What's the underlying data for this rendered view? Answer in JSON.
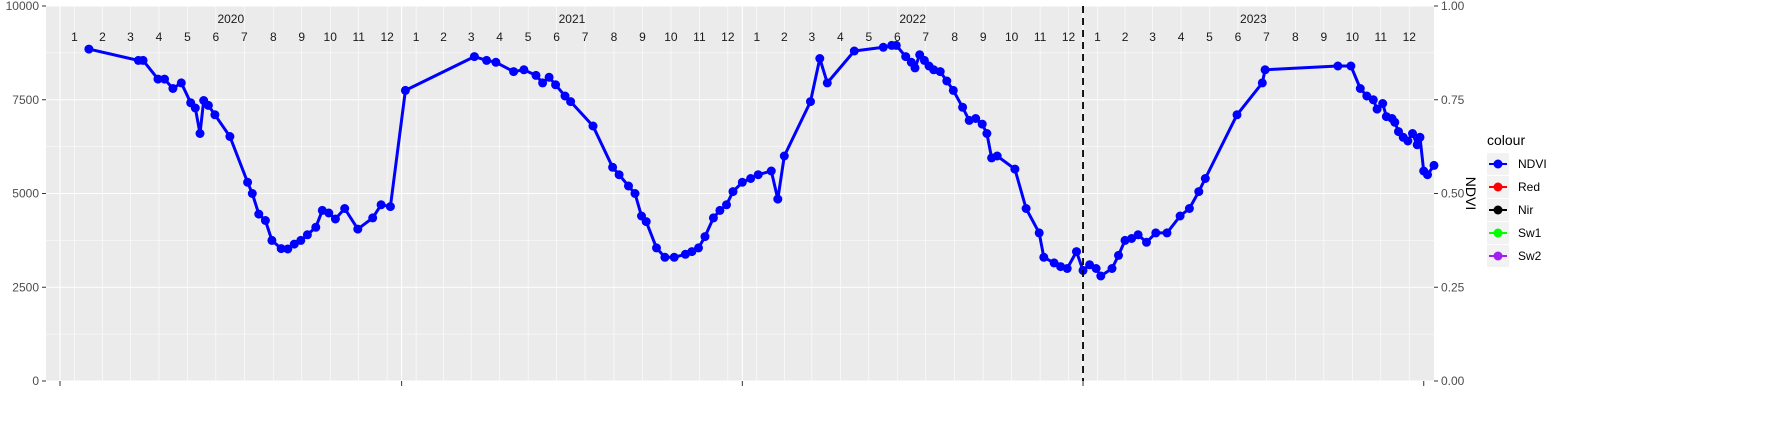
{
  "chart_data": {
    "type": "line",
    "xlim": [
      "2019-12-17",
      "2024-01-12"
    ],
    "ylim_left": [
      0,
      10000
    ],
    "ylim_right": [
      0,
      1
    ],
    "yticks_left": [
      0,
      2500,
      5000,
      7500,
      10000
    ],
    "yticks_right": [
      "0.00",
      "0.25",
      "0.50",
      "0.75",
      "1.00"
    ],
    "ylabel_right": "NDVI",
    "year_labels": [
      "2020",
      "2021",
      "2022",
      "2023"
    ],
    "month_labels": [
      "1",
      "2",
      "3",
      "4",
      "5",
      "6",
      "7",
      "8",
      "9",
      "10",
      "11",
      "12"
    ],
    "vline_date": "2023-01-01",
    "grid": true,
    "legend": {
      "title": "colour",
      "position": "right"
    },
    "series": [
      {
        "name": "NDVI",
        "color": "#0000FF",
        "axis": "right",
        "points": [
          [
            "2020-02-01",
            0.885
          ],
          [
            "2020-03-25",
            0.855
          ],
          [
            "2020-03-30",
            0.855
          ],
          [
            "2020-04-15",
            0.805
          ],
          [
            "2020-04-22",
            0.805
          ],
          [
            "2020-05-01",
            0.78
          ],
          [
            "2020-05-10",
            0.795
          ],
          [
            "2020-05-20",
            0.742
          ],
          [
            "2020-05-25",
            0.728
          ],
          [
            "2020-05-30",
            0.66
          ],
          [
            "2020-06-03",
            0.748
          ],
          [
            "2020-06-08",
            0.735
          ],
          [
            "2020-06-15",
            0.71
          ],
          [
            "2020-07-01",
            0.652
          ],
          [
            "2020-07-20",
            0.53
          ],
          [
            "2020-07-25",
            0.5
          ],
          [
            "2020-08-01",
            0.445
          ],
          [
            "2020-08-08",
            0.428
          ],
          [
            "2020-08-15",
            0.375
          ],
          [
            "2020-08-25",
            0.353
          ],
          [
            "2020-09-01",
            0.352
          ],
          [
            "2020-09-08",
            0.365
          ],
          [
            "2020-09-15",
            0.375
          ],
          [
            "2020-09-22",
            0.39
          ],
          [
            "2020-10-01",
            0.41
          ],
          [
            "2020-10-08",
            0.455
          ],
          [
            "2020-10-15",
            0.448
          ],
          [
            "2020-10-22",
            0.432
          ],
          [
            "2020-11-01",
            0.46
          ],
          [
            "2020-11-15",
            0.405
          ],
          [
            "2020-12-01",
            0.435
          ],
          [
            "2020-12-10",
            0.47
          ],
          [
            "2020-12-20",
            0.465
          ],
          [
            "2021-01-05",
            0.775
          ],
          [
            "2021-03-20",
            0.865
          ],
          [
            "2021-04-02",
            0.855
          ],
          [
            "2021-04-12",
            0.85
          ],
          [
            "2021-05-01",
            0.825
          ],
          [
            "2021-05-12",
            0.83
          ],
          [
            "2021-05-25",
            0.815
          ],
          [
            "2021-06-01",
            0.795
          ],
          [
            "2021-06-08",
            0.81
          ],
          [
            "2021-06-15",
            0.79
          ],
          [
            "2021-06-25",
            0.76
          ],
          [
            "2021-07-01",
            0.745
          ],
          [
            "2021-07-25",
            0.68
          ],
          [
            "2021-08-15",
            0.57
          ],
          [
            "2021-08-22",
            0.55
          ],
          [
            "2021-09-01",
            0.52
          ],
          [
            "2021-09-08",
            0.5
          ],
          [
            "2021-09-15",
            0.44
          ],
          [
            "2021-09-20",
            0.425
          ],
          [
            "2021-10-01",
            0.355
          ],
          [
            "2021-10-10",
            0.33
          ],
          [
            "2021-10-20",
            0.33
          ],
          [
            "2021-11-01",
            0.338
          ],
          [
            "2021-11-08",
            0.345
          ],
          [
            "2021-11-15",
            0.355
          ],
          [
            "2021-11-22",
            0.385
          ],
          [
            "2021-12-01",
            0.435
          ],
          [
            "2021-12-08",
            0.455
          ],
          [
            "2021-12-15",
            0.47
          ],
          [
            "2021-12-22",
            0.505
          ],
          [
            "2022-01-01",
            0.53
          ],
          [
            "2022-01-10",
            0.54
          ],
          [
            "2022-01-18",
            0.55
          ],
          [
            "2022-02-01",
            0.56
          ],
          [
            "2022-02-08",
            0.485
          ],
          [
            "2022-02-15",
            0.6
          ],
          [
            "2022-03-15",
            0.745
          ],
          [
            "2022-03-25",
            0.86
          ],
          [
            "2022-04-02",
            0.795
          ],
          [
            "2022-05-01",
            0.88
          ],
          [
            "2022-06-01",
            0.89
          ],
          [
            "2022-06-10",
            0.895
          ],
          [
            "2022-06-15",
            0.895
          ],
          [
            "2022-06-25",
            0.865
          ],
          [
            "2022-07-01",
            0.85
          ],
          [
            "2022-07-05",
            0.835
          ],
          [
            "2022-07-10",
            0.87
          ],
          [
            "2022-07-15",
            0.855
          ],
          [
            "2022-07-20",
            0.84
          ],
          [
            "2022-07-25",
            0.83
          ],
          [
            "2022-08-01",
            0.825
          ],
          [
            "2022-08-08",
            0.8
          ],
          [
            "2022-08-15",
            0.775
          ],
          [
            "2022-08-25",
            0.73
          ],
          [
            "2022-09-01",
            0.695
          ],
          [
            "2022-09-08",
            0.7
          ],
          [
            "2022-09-15",
            0.685
          ],
          [
            "2022-09-20",
            0.66
          ],
          [
            "2022-09-25",
            0.595
          ],
          [
            "2022-10-01",
            0.6
          ],
          [
            "2022-10-20",
            0.565
          ],
          [
            "2022-11-01",
            0.46
          ],
          [
            "2022-11-15",
            0.395
          ],
          [
            "2022-11-20",
            0.33
          ],
          [
            "2022-12-01",
            0.315
          ],
          [
            "2022-12-08",
            0.305
          ],
          [
            "2022-12-15",
            0.3
          ],
          [
            "2022-12-25",
            0.345
          ],
          [
            "2023-01-01",
            0.295
          ],
          [
            "2023-01-08",
            0.31
          ],
          [
            "2023-01-15",
            0.3
          ],
          [
            "2023-01-20",
            0.28
          ],
          [
            "2023-02-01",
            0.3
          ],
          [
            "2023-02-08",
            0.335
          ],
          [
            "2023-02-15",
            0.375
          ],
          [
            "2023-02-22",
            0.38
          ],
          [
            "2023-03-01",
            0.39
          ],
          [
            "2023-03-10",
            0.37
          ],
          [
            "2023-03-20",
            0.395
          ],
          [
            "2023-04-01",
            0.395
          ],
          [
            "2023-04-15",
            0.44
          ],
          [
            "2023-04-25",
            0.46
          ],
          [
            "2023-05-05",
            0.505
          ],
          [
            "2023-05-12",
            0.54
          ],
          [
            "2023-06-15",
            0.71
          ],
          [
            "2023-07-12",
            0.795
          ],
          [
            "2023-07-15",
            0.83
          ],
          [
            "2023-10-01",
            0.84
          ],
          [
            "2023-10-15",
            0.84
          ],
          [
            "2023-10-25",
            0.78
          ],
          [
            "2023-11-01",
            0.76
          ],
          [
            "2023-11-08",
            0.75
          ],
          [
            "2023-11-12",
            0.725
          ],
          [
            "2023-11-18",
            0.74
          ],
          [
            "2023-11-22",
            0.705
          ],
          [
            "2023-11-28",
            0.7
          ],
          [
            "2023-12-01",
            0.69
          ],
          [
            "2023-12-05",
            0.665
          ],
          [
            "2023-12-10",
            0.65
          ],
          [
            "2023-12-15",
            0.64
          ],
          [
            "2023-12-20",
            0.66
          ],
          [
            "2023-12-25",
            0.63
          ],
          [
            "2023-12-28",
            0.65
          ],
          [
            "2024-01-01",
            0.56
          ],
          [
            "2024-01-05",
            0.55
          ],
          [
            "2024-01-12",
            0.575
          ]
        ]
      },
      {
        "name": "Red",
        "color": "#FF0000",
        "axis": "left",
        "points": []
      },
      {
        "name": "Nir",
        "color": "#000000",
        "axis": "left",
        "points": []
      },
      {
        "name": "Sw1",
        "color": "#00FF00",
        "axis": "left",
        "points": []
      },
      {
        "name": "Sw2",
        "color": "#A020F0",
        "axis": "left",
        "points": []
      }
    ]
  }
}
